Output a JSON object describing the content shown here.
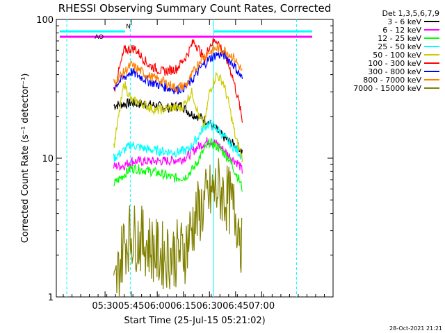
{
  "chart_data": {
    "type": "line",
    "title": "RHESSI Observing Summary Count Rates, Corrected",
    "xlabel": "Start Time (25-Jul-15 05:21:02)",
    "ylabel": "Corrected Count Rate (s⁻¹ detector⁻¹)",
    "yscale": "log",
    "ylim": [
      1,
      100
    ],
    "xlim_min": [
      -19,
      140
    ],
    "x_ticks": [
      "05:30",
      "05:45",
      "06:00",
      "06:15",
      "06:30",
      "06:45",
      "07:00"
    ],
    "x_tick_min": [
      9,
      24,
      39,
      54,
      69,
      84,
      99
    ],
    "y_ticks": [
      "1",
      "10",
      "100"
    ],
    "y_tick_values": [
      1,
      10,
      100
    ],
    "grid": false,
    "legend_title": "Det 1,3,5,6,7,9",
    "legend_position": "right",
    "annotations": {
      "N": "N",
      "AO": "AO"
    },
    "vertical_markers_min": [
      -13,
      23.5,
      71.5,
      119
    ],
    "top_bars": [
      {
        "color": "#00ffff",
        "ranges_min": [
          [
            -17,
            20.5
          ],
          [
            71.5,
            128
          ]
        ]
      },
      {
        "color": "#ff00ff",
        "ranges_min": [
          [
            -17,
            128
          ]
        ]
      }
    ],
    "series": [
      {
        "name": "3 - 6 keV",
        "color": "#000000",
        "x": [
          14,
          24,
          38,
          45,
          53,
          58,
          63,
          69,
          75,
          81,
          86,
          88
        ],
        "y": [
          24,
          25,
          24,
          23,
          24,
          21,
          20,
          18,
          15,
          13,
          12,
          11
        ]
      },
      {
        "name": "6 - 12 keV",
        "color": "#ff00ff",
        "x": [
          14,
          20,
          24,
          38,
          46,
          53,
          57,
          62,
          69,
          74,
          80,
          86,
          88
        ],
        "y": [
          8.7,
          8.9,
          9.5,
          9.5,
          9.6,
          9.8,
          10.5,
          12,
          13.5,
          12.5,
          10.5,
          9,
          8
        ]
      },
      {
        "name": "12 - 25 keV",
        "color": "#00ff00",
        "x": [
          14,
          24,
          32,
          40,
          48,
          55,
          60,
          64,
          69,
          74,
          80,
          86,
          88
        ],
        "y": [
          6.5,
          8.5,
          8.2,
          7.8,
          7.2,
          7.3,
          8.5,
          10.5,
          13,
          12,
          10,
          7,
          6
        ]
      },
      {
        "name": "25 - 50 keV",
        "color": "#00ffff",
        "x": [
          14,
          24,
          34,
          42,
          50,
          57,
          62,
          66,
          69,
          74,
          80,
          86,
          88
        ],
        "y": [
          10,
          12.5,
          11.5,
          11.2,
          11,
          11.5,
          14,
          17,
          17.5,
          16,
          13,
          11,
          10
        ]
      },
      {
        "name": "50 - 100 keV",
        "color": "#cccc00",
        "x": [
          14,
          20,
          24,
          30,
          38,
          46,
          53,
          59,
          63,
          66,
          69,
          73,
          77,
          80,
          84,
          88
        ],
        "y": [
          12,
          35,
          26,
          25,
          22,
          23,
          23,
          30,
          20,
          17,
          30,
          40,
          35,
          25,
          14,
          10
        ]
      },
      {
        "name": "100 - 300 keV",
        "color": "#ff0000",
        "x": [
          14,
          20,
          26,
          34,
          42,
          50,
          56,
          60,
          64,
          66,
          69,
          73,
          78,
          82,
          86,
          88
        ],
        "y": [
          30,
          60,
          62,
          47,
          42,
          44,
          55,
          70,
          58,
          50,
          65,
          72,
          55,
          40,
          25,
          18
        ]
      },
      {
        "name": "300 - 800 keV",
        "color": "#0000ff",
        "x": [
          14,
          24,
          34,
          42,
          50,
          56,
          60,
          64,
          69,
          73,
          78,
          83,
          88
        ],
        "y": [
          33,
          42,
          36,
          33,
          31,
          33,
          38,
          45,
          52,
          56,
          55,
          47,
          37
        ]
      },
      {
        "name": "800 - 7000 keV",
        "color": "#ff8000",
        "x": [
          14,
          24,
          34,
          42,
          50,
          56,
          60,
          64,
          69,
          73,
          78,
          83,
          88
        ],
        "y": [
          35,
          47,
          39,
          36,
          32,
          34,
          42,
          52,
          58,
          62,
          60,
          53,
          42
        ]
      },
      {
        "name": "7000 - 15000 keV",
        "color": "#808000",
        "x": [
          14,
          20,
          24,
          32,
          40,
          48,
          55,
          60,
          65,
          70,
          74,
          80,
          86,
          88
        ],
        "y": [
          1,
          2.5,
          2.8,
          2.5,
          2.0,
          2.0,
          2.2,
          3.5,
          4.5,
          5.5,
          6,
          5,
          3.5,
          2
        ]
      }
    ]
  },
  "footer_timestamp": "28-Oct-2021 21:21"
}
